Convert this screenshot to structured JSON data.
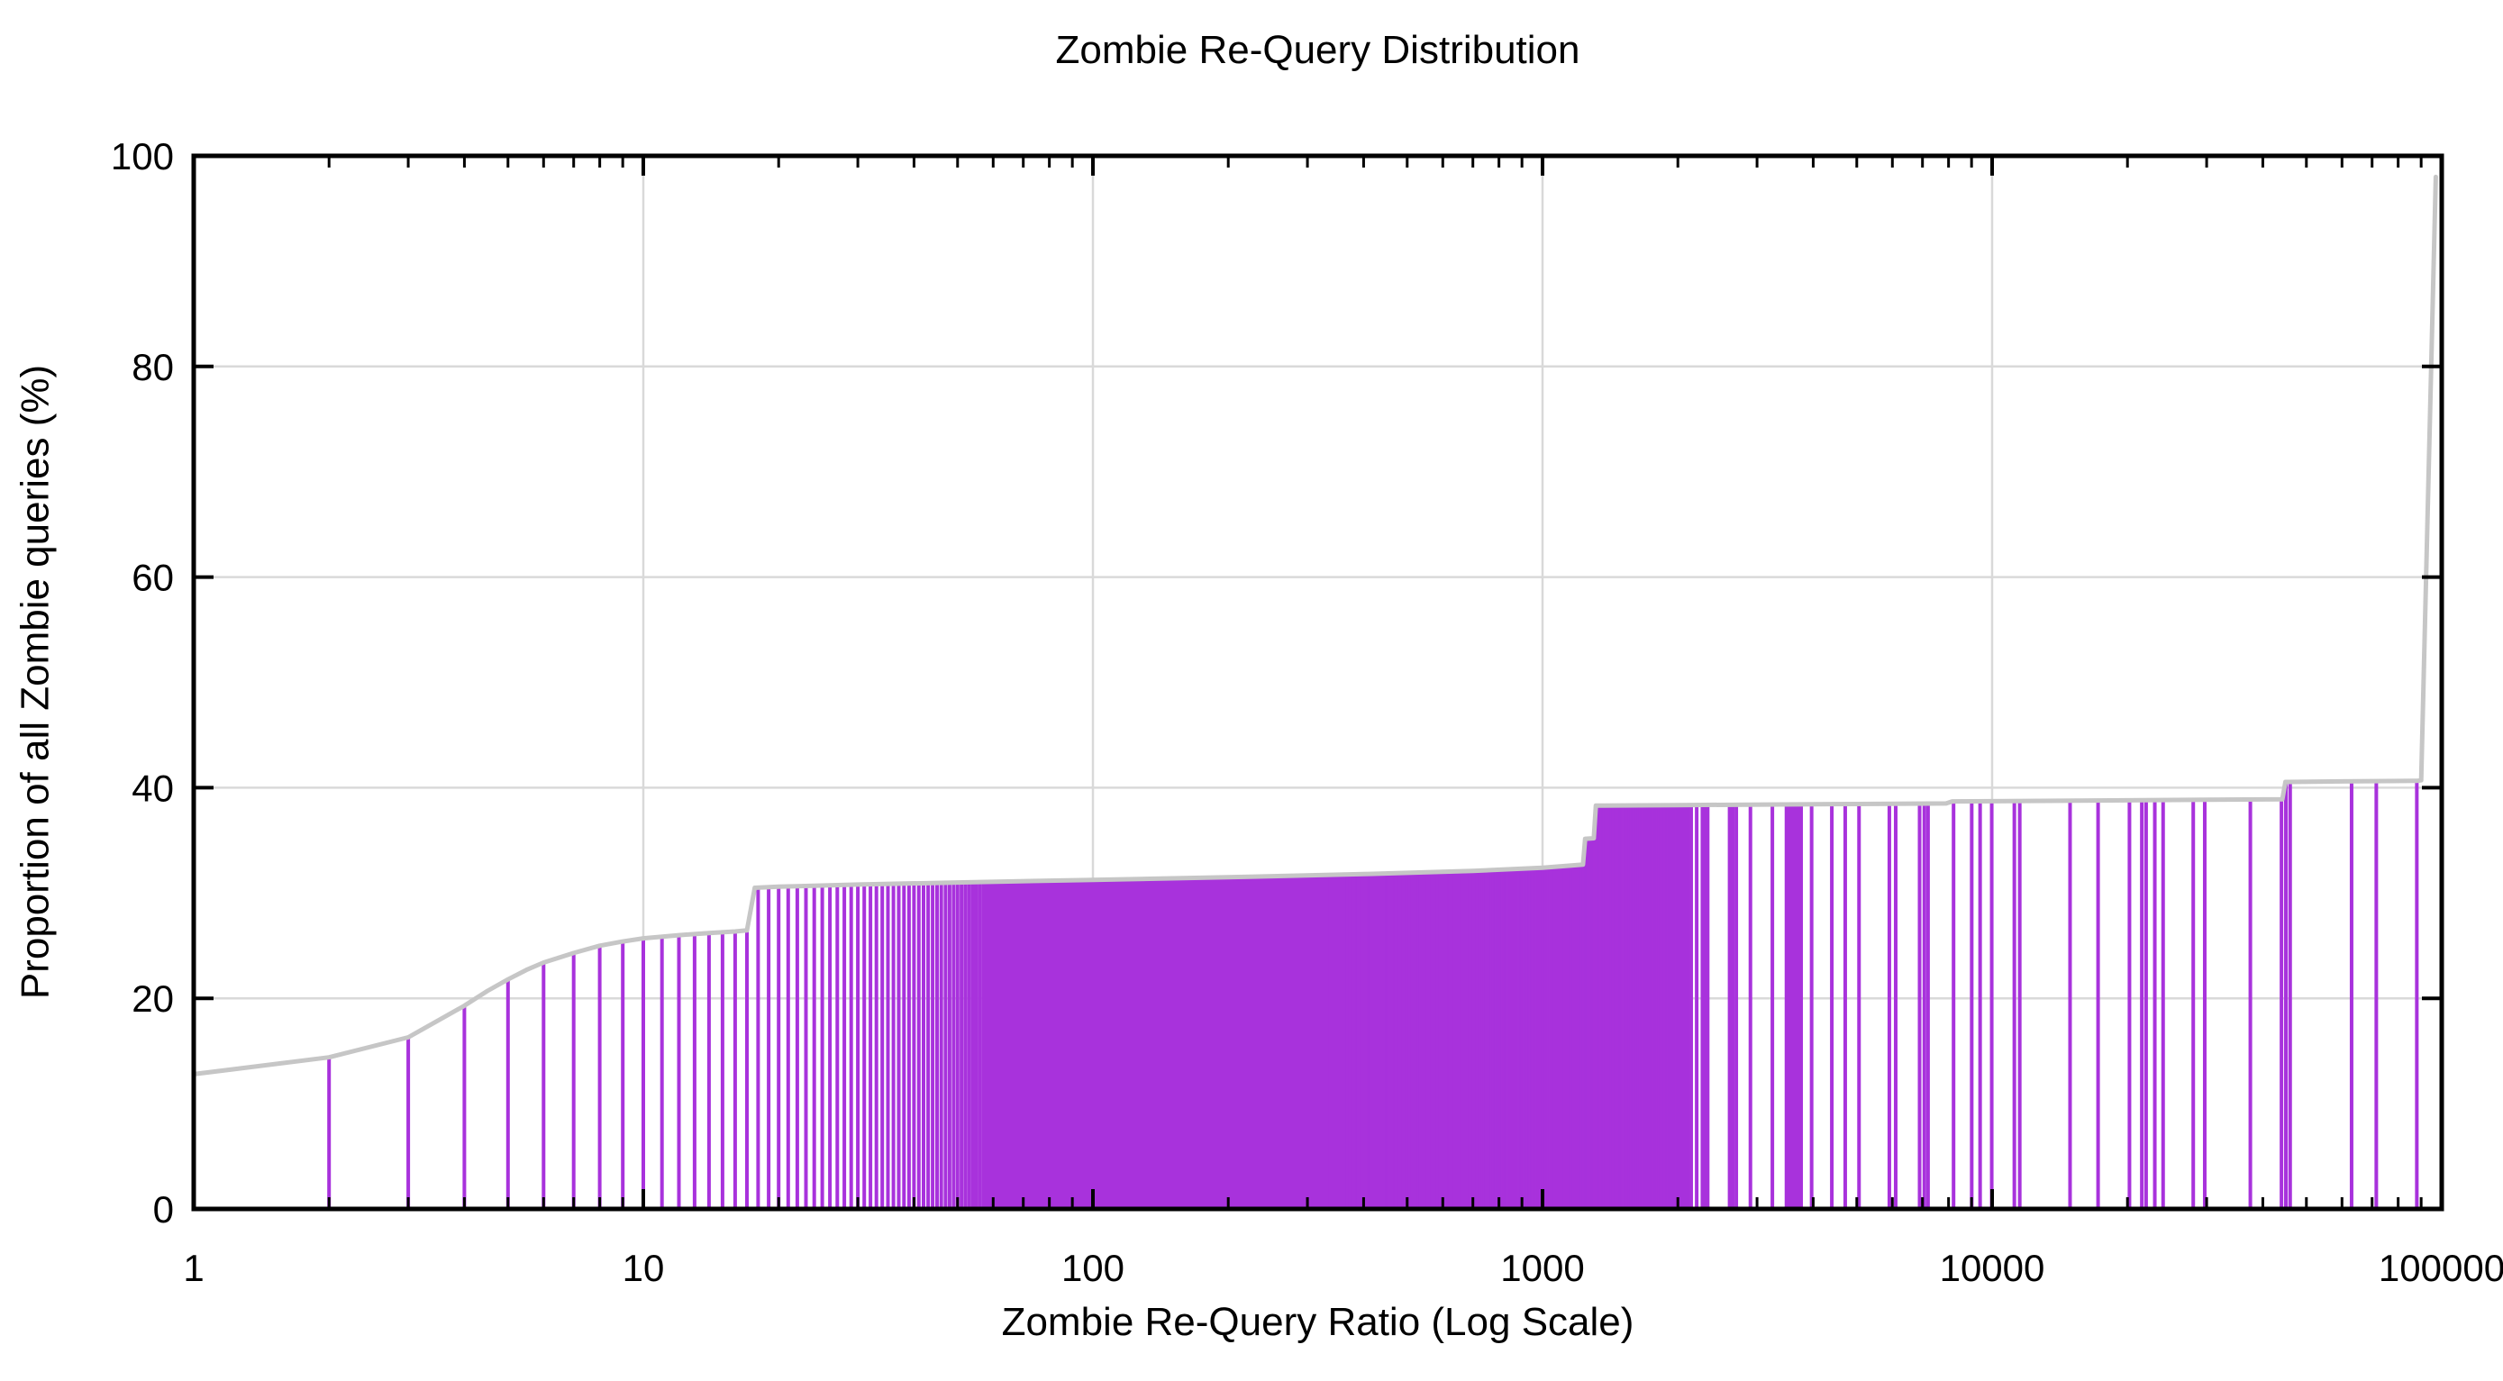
{
  "chart_data": {
    "type": "bar",
    "subtype": "impulses-with-cdf-line",
    "title": "Zombie Re-Query Distribution",
    "xlabel": "Zombie Re-Query Ratio (Log Scale)",
    "ylabel": "Proportion of all Zombie queries (%)",
    "x_scale": "log10",
    "xlim": [
      1,
      100000
    ],
    "ylim": [
      0,
      100
    ],
    "grid": "on",
    "legend_position": "none",
    "x_major_ticks": [
      1,
      10,
      100,
      1000,
      10000,
      100000
    ],
    "x_major_tick_labels": [
      "1",
      "10",
      "100",
      "1000",
      "10000",
      "100000"
    ],
    "x_minor_ticks_per_decade": [
      2,
      3,
      4,
      5,
      6,
      7,
      8,
      9
    ],
    "y_major_ticks": [
      0,
      20,
      40,
      60,
      80,
      100
    ],
    "y_major_tick_labels": [
      "0",
      "20",
      "40",
      "60",
      "80",
      "100"
    ],
    "x_gridlines_at": [
      10,
      100,
      1000,
      10000
    ],
    "y_gridlines_at": [
      20,
      40,
      60,
      80
    ],
    "colors": {
      "impulse": "#a832dc",
      "cdf_line": "#c6c6c6",
      "grid": "#d9d9d9",
      "axis": "#000000",
      "background": "#ffffff"
    },
    "cdf_line_points": [
      [
        1,
        12.8
      ],
      [
        2,
        14.4
      ],
      [
        3,
        16.3
      ],
      [
        4,
        19.3
      ],
      [
        4.5,
        20.7
      ],
      [
        5,
        21.8
      ],
      [
        5.5,
        22.7
      ],
      [
        6,
        23.4
      ],
      [
        7,
        24.3
      ],
      [
        8,
        25.0
      ],
      [
        9,
        25.4
      ],
      [
        10,
        25.7
      ],
      [
        12,
        26.0
      ],
      [
        14,
        26.2
      ],
      [
        16,
        26.35
      ],
      [
        17,
        26.45
      ],
      [
        17.7,
        30.5
      ],
      [
        20,
        30.6
      ],
      [
        30,
        30.8
      ],
      [
        50,
        31.0
      ],
      [
        100,
        31.25
      ],
      [
        200,
        31.5
      ],
      [
        400,
        31.8
      ],
      [
        700,
        32.1
      ],
      [
        1000,
        32.4
      ],
      [
        1230,
        32.7
      ],
      [
        1244,
        35.15
      ],
      [
        1300,
        35.2
      ],
      [
        1314,
        38.3
      ],
      [
        2000,
        38.35
      ],
      [
        5000,
        38.45
      ],
      [
        7900,
        38.5
      ],
      [
        8150,
        38.7
      ],
      [
        10000,
        38.72
      ],
      [
        20000,
        38.8
      ],
      [
        30000,
        38.85
      ],
      [
        44200,
        38.9
      ],
      [
        44900,
        40.55
      ],
      [
        60000,
        40.6
      ],
      [
        88000,
        40.65
      ],
      [
        90000,
        40.7
      ],
      [
        97000,
        98.0
      ]
    ],
    "impulses": {
      "integer_runs": [
        [
          2,
          2140
        ]
      ],
      "integer_gaps": [
        [
          1516,
          1524
        ]
      ],
      "value_ranges": [
        [
          2197,
          2208
        ],
        [
          2268,
          2330
        ],
        [
          2598,
          2615
        ],
        [
          2640,
          2655
        ],
        [
          2690,
          2705
        ],
        [
          2888,
          2912
        ],
        [
          3228,
          3262
        ],
        [
          3488,
          3560
        ],
        [
          3580,
          3760
        ],
        [
          3950,
          3985
        ],
        [
          4375,
          4425
        ],
        [
          4700,
          4725
        ],
        [
          5040,
          5075
        ],
        [
          5890,
          5925
        ],
        [
          6090,
          6115
        ],
        [
          6880,
          6915
        ],
        [
          7050,
          7085
        ],
        [
          7190,
          7215
        ],
        [
          8190,
          8225
        ],
        [
          8990,
          9025
        ],
        [
          9380,
          9425
        ],
        [
          9900,
          10060
        ],
        [
          11150,
          11260
        ],
        [
          11480,
          11560
        ],
        [
          14850,
          14960
        ],
        [
          17150,
          17260
        ],
        [
          20150,
          20260
        ],
        [
          21420,
          21630
        ],
        [
          21900,
          22110
        ],
        [
          22900,
          23110
        ],
        [
          23900,
          24110
        ],
        [
          27900,
          28120
        ],
        [
          29600,
          29820
        ],
        [
          37400,
          37650
        ],
        [
          43900,
          44120
        ],
        [
          44900,
          45120
        ],
        [
          45900,
          46120
        ],
        [
          62800,
          63250
        ],
        [
          71300,
          71750
        ],
        [
          87800,
          88250
        ]
      ]
    }
  }
}
